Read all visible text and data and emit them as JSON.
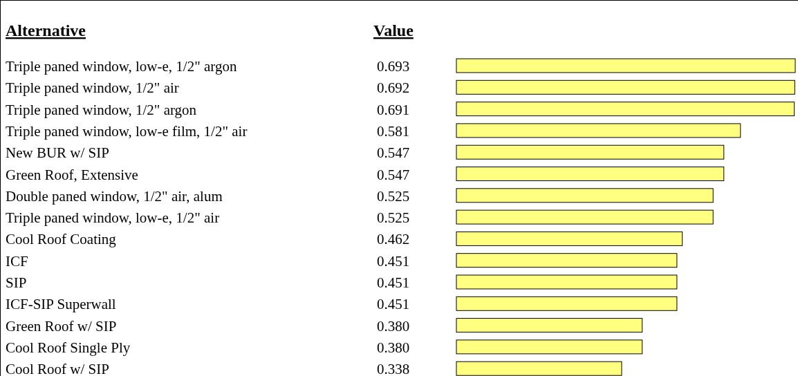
{
  "chart_data": {
    "type": "bar",
    "orientation": "horizontal",
    "ylabel": "Alternative",
    "xlabel": "Value",
    "categories": [
      "Triple paned window, low-e, 1/2\" argon",
      "Triple paned window, 1/2\" air",
      "Triple paned window, 1/2\" argon",
      "Triple paned window, low-e film, 1/2\" air",
      "New BUR w/ SIP",
      "Green Roof, Extensive",
      "Double paned window, 1/2\" air, alum",
      "Triple paned window, low-e, 1/2\" air",
      "Cool Roof Coating",
      "ICF",
      "SIP",
      "ICF-SIP Superwall",
      "Green Roof w/ SIP",
      "Cool Roof Single Ply",
      "Cool Roof w/ SIP"
    ],
    "values": [
      0.693,
      0.692,
      0.691,
      0.581,
      0.547,
      0.547,
      0.525,
      0.525,
      0.462,
      0.451,
      0.451,
      0.451,
      0.38,
      0.38,
      0.338
    ],
    "value_labels": [
      "0.693",
      "0.692",
      "0.691",
      "0.581",
      "0.547",
      "0.547",
      "0.525",
      "0.525",
      "0.462",
      "0.451",
      "0.451",
      "0.451",
      "0.380",
      "0.380",
      "0.338"
    ],
    "color": "#ffff80"
  }
}
